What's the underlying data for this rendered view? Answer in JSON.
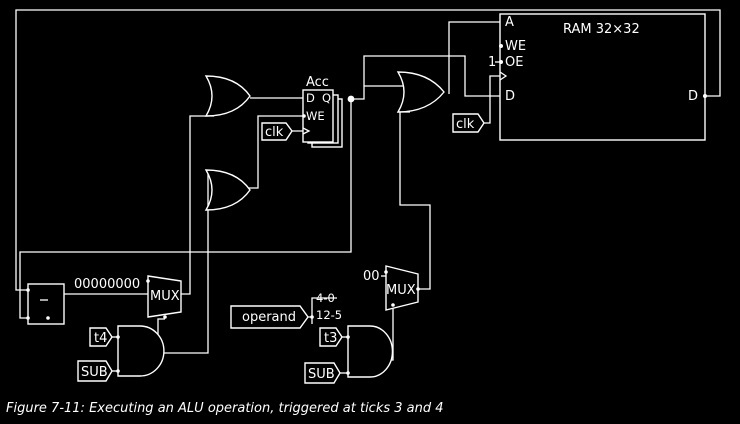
{
  "labels": {
    "ram_title": "RAM 32×32",
    "ram_a": "A",
    "ram_we": "WE",
    "ram_one": "1",
    "ram_oe": "OE",
    "ram_d_in": "D",
    "ram_d_out": "D",
    "acc_title": "Acc",
    "acc_d": "D",
    "acc_q": "Q",
    "acc_we": "WE",
    "clk": "clk",
    "zeros8": "00000000",
    "mux": "MUX",
    "zeros2": "00",
    "operand": "operand",
    "bits_hi": "4-0",
    "bits_lo": "12-5",
    "t4": "t4",
    "t3": "t3",
    "sub": "SUB"
  },
  "caption": "Figure 7-11: Executing an ALU operation, triggered at ticks 3 and 4",
  "colors": {
    "background": "#000000",
    "foreground": "#ffffff"
  }
}
